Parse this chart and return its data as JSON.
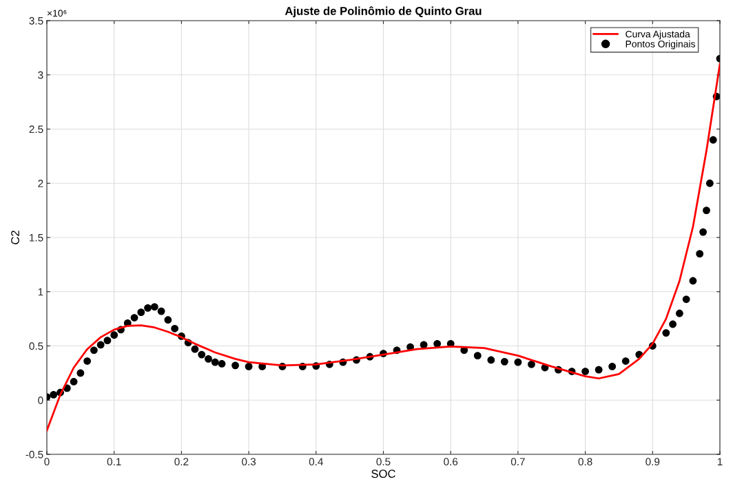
{
  "chart_data": {
    "type": "line",
    "title": "Ajuste de Polinômio de Quinto Grau",
    "xlabel": "SOC",
    "ylabel": "C2",
    "annotations": [
      "×10⁶"
    ],
    "xlim": [
      0,
      1
    ],
    "xticks": [
      0,
      0.1,
      0.2,
      0.3,
      0.4,
      0.5,
      0.6,
      0.7,
      0.8,
      0.9,
      1
    ],
    "ylim": [
      -0.5,
      3.5
    ],
    "yticks": [
      -0.5,
      0,
      0.5,
      1,
      1.5,
      2,
      2.5,
      3,
      3.5
    ],
    "grid": true,
    "legend": "top right",
    "series": [
      {
        "name": "Curva Ajustada",
        "color": "#ff0000",
        "marker": "none",
        "line_style": "solid",
        "x": [
          0,
          0.02,
          0.04,
          0.06,
          0.08,
          0.1,
          0.12,
          0.14,
          0.16,
          0.18,
          0.2,
          0.22,
          0.25,
          0.28,
          0.3,
          0.35,
          0.4,
          0.45,
          0.5,
          0.55,
          0.6,
          0.65,
          0.7,
          0.75,
          0.8,
          0.82,
          0.85,
          0.88,
          0.9,
          0.92,
          0.94,
          0.96,
          0.98,
          0.99,
          1.0
        ],
        "values": [
          -0.28,
          0.05,
          0.3,
          0.47,
          0.58,
          0.65,
          0.685,
          0.69,
          0.67,
          0.63,
          0.58,
          0.52,
          0.44,
          0.38,
          0.35,
          0.32,
          0.33,
          0.37,
          0.42,
          0.47,
          0.495,
          0.48,
          0.41,
          0.31,
          0.22,
          0.2,
          0.24,
          0.38,
          0.52,
          0.75,
          1.1,
          1.6,
          2.3,
          2.7,
          3.1
        ]
      },
      {
        "name": "Pontos Originais",
        "type": "scatter",
        "color": "#000000",
        "marker": "circle",
        "x": [
          0,
          0.01,
          0.02,
          0.03,
          0.04,
          0.05,
          0.06,
          0.07,
          0.08,
          0.09,
          0.1,
          0.11,
          0.12,
          0.13,
          0.14,
          0.15,
          0.16,
          0.17,
          0.18,
          0.19,
          0.2,
          0.21,
          0.22,
          0.23,
          0.24,
          0.25,
          0.26,
          0.28,
          0.3,
          0.32,
          0.35,
          0.38,
          0.4,
          0.42,
          0.44,
          0.46,
          0.48,
          0.5,
          0.52,
          0.54,
          0.56,
          0.58,
          0.6,
          0.62,
          0.64,
          0.66,
          0.68,
          0.7,
          0.72,
          0.74,
          0.76,
          0.78,
          0.8,
          0.82,
          0.84,
          0.86,
          0.88,
          0.9,
          0.92,
          0.93,
          0.94,
          0.95,
          0.96,
          0.97,
          0.975,
          0.98,
          0.985,
          0.99,
          0.995,
          1.0
        ],
        "values": [
          0.03,
          0.05,
          0.07,
          0.11,
          0.17,
          0.25,
          0.36,
          0.46,
          0.51,
          0.55,
          0.6,
          0.65,
          0.71,
          0.76,
          0.81,
          0.85,
          0.86,
          0.82,
          0.74,
          0.66,
          0.59,
          0.53,
          0.47,
          0.42,
          0.38,
          0.35,
          0.335,
          0.32,
          0.31,
          0.31,
          0.31,
          0.31,
          0.315,
          0.33,
          0.35,
          0.37,
          0.4,
          0.43,
          0.46,
          0.49,
          0.51,
          0.52,
          0.52,
          0.46,
          0.41,
          0.37,
          0.355,
          0.35,
          0.33,
          0.3,
          0.28,
          0.265,
          0.265,
          0.28,
          0.31,
          0.36,
          0.42,
          0.5,
          0.62,
          0.7,
          0.8,
          0.93,
          1.1,
          1.35,
          1.55,
          1.75,
          2.0,
          2.4,
          2.8,
          3.15
        ]
      }
    ]
  }
}
